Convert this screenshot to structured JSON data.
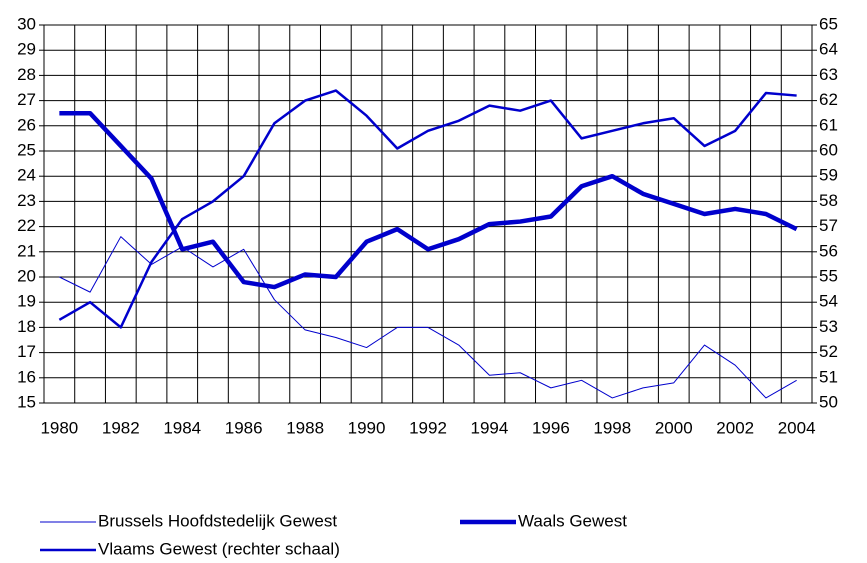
{
  "chart_data": {
    "type": "line",
    "categories": [
      "1980",
      null,
      "1982",
      null,
      "1984",
      null,
      "1986",
      null,
      "1988",
      null,
      "1990",
      null,
      "1992",
      null,
      "1994",
      null,
      "1996",
      null,
      "1998",
      null,
      "2000",
      null,
      "2002",
      null,
      "2004"
    ],
    "series": [
      {
        "name": "Brussels Hoofdstedelijk Gewest",
        "color": "#0000cc",
        "width": 1,
        "values": [
          20.0,
          19.4,
          21.6,
          20.5,
          21.2,
          20.4,
          21.1,
          19.1,
          17.9,
          17.6,
          17.2,
          18.0,
          18.0,
          17.3,
          16.1,
          16.2,
          15.6,
          15.9,
          15.2,
          15.6,
          15.8,
          17.3,
          16.5,
          15.2,
          15.9
        ]
      },
      {
        "name": "Waals Gewest",
        "color": "#0000cc",
        "width": 4.5,
        "values": [
          26.5,
          26.5,
          25.2,
          23.9,
          21.1,
          21.4,
          19.8,
          19.6,
          20.1,
          20.0,
          21.4,
          21.9,
          21.1,
          21.5,
          22.1,
          22.2,
          22.4,
          23.6,
          24.0,
          23.3,
          22.9,
          22.5,
          22.7,
          22.5,
          21.9
        ]
      },
      {
        "name": "Vlaams Gewest (rechter schaal)",
        "color": "#0000cc",
        "width": 2.5,
        "axis": "y2",
        "values": [
          53.3,
          54.0,
          53.0,
          55.6,
          57.3,
          58.0,
          59.0,
          61.1,
          62.0,
          62.4,
          61.4,
          60.1,
          60.8,
          61.2,
          61.8,
          61.6,
          62.0,
          60.5,
          60.8,
          61.1,
          61.3,
          60.2,
          60.8,
          62.3,
          62.2
        ]
      }
    ],
    "ylim": [
      15,
      30
    ],
    "yticks": [
      15,
      16,
      17,
      18,
      19,
      20,
      21,
      22,
      23,
      24,
      25,
      26,
      27,
      28,
      29,
      30
    ],
    "y2lim": [
      50,
      65
    ],
    "y2ticks": [
      50,
      51,
      52,
      53,
      54,
      55,
      56,
      57,
      58,
      59,
      60,
      61,
      62,
      63,
      64,
      65
    ],
    "grid": true
  }
}
